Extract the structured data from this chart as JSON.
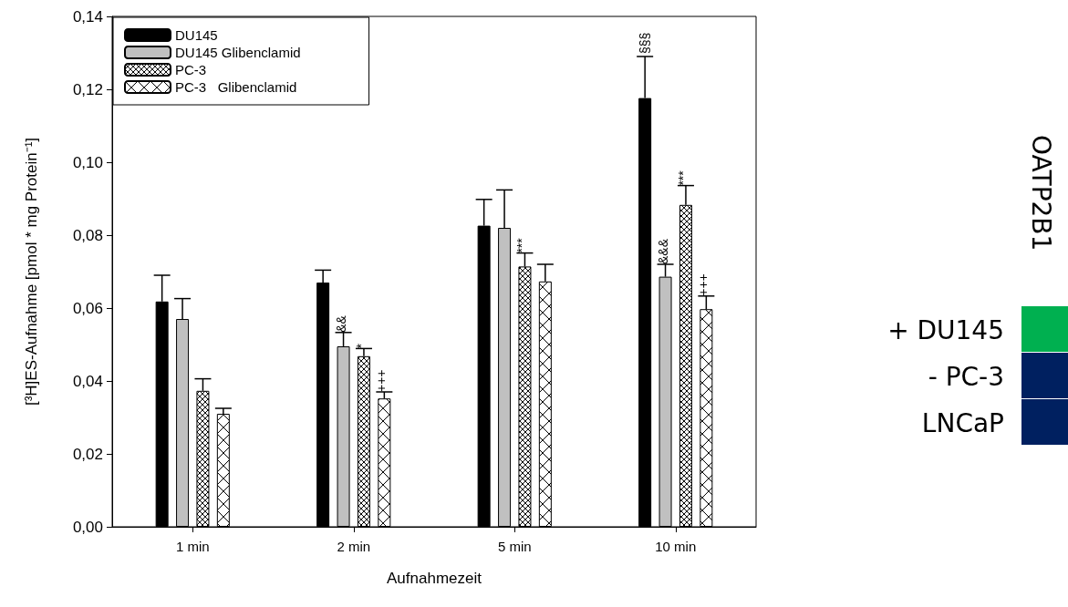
{
  "chart_data": {
    "type": "bar",
    "ylabel": "[³H]ES-Aufnahme [pmol * mg Protein⁻¹]",
    "xlabel": "Aufnahmezeit",
    "categories": [
      "1 min",
      "2 min",
      "5 min",
      "10 min"
    ],
    "series": [
      {
        "name": "DU145",
        "color": "#000000",
        "values": [
          0.0618,
          0.067,
          0.0826,
          0.1176
        ],
        "errors": [
          0.0072,
          0.0034,
          0.0072,
          0.0114
        ]
      },
      {
        "name": "DU145 Glibenclamid",
        "color": "#c0c0c0",
        "values": [
          0.057,
          0.0495,
          0.082,
          0.0686
        ],
        "errors": [
          0.0056,
          0.0038,
          0.0104,
          0.0034
        ]
      },
      {
        "name": "PC-3",
        "color": "#000000",
        "values": [
          0.0373,
          0.0468,
          0.0714,
          0.0883
        ],
        "errors": [
          0.0033,
          0.0021,
          0.0037,
          0.0053
        ]
      },
      {
        "name": "PC-3   Glibenclamid",
        "color": "#000000",
        "values": [
          0.031,
          0.0352,
          0.0673,
          0.0597
        ],
        "errors": [
          0.0015,
          0.0018,
          0.0047,
          0.0036
        ]
      }
    ],
    "ylim": [
      0,
      0.14
    ],
    "yticks": [
      {
        "value": 0,
        "label": "0,00"
      },
      {
        "value": 0.02,
        "label": "0,02"
      },
      {
        "value": 0.04,
        "label": "0,04"
      },
      {
        "value": 0.06,
        "label": "0,06"
      },
      {
        "value": 0.08,
        "label": "0,08"
      },
      {
        "value": 0.1,
        "label": "0,10"
      },
      {
        "value": 0.12,
        "label": "0,12"
      },
      {
        "value": 0.14,
        "label": "0,14"
      }
    ],
    "legend": "top left",
    "grid": false,
    "annotations": [
      {
        "text": "&&",
        "x": "2 min",
        "y": 0.0533
      },
      {
        "text": "*",
        "x": "2 min",
        "y": 0.0489
      },
      {
        "text": "+++",
        "x": "2 min",
        "y": 0.037
      },
      {
        "text": "***",
        "x": "5 min",
        "y": 0.0751
      },
      "§§§",
      {
        "text": "&&&",
        "x": "10 min",
        "y": 0.072
      },
      {
        "text": "***",
        "x": "10 min",
        "y": 0.0936
      },
      {
        "text": "+++",
        "x": "10 min",
        "y": 0.0633
      },
      "OATP2B1",
      "+ DU145",
      "- PC-3",
      "LNCaP"
    ]
  }
}
